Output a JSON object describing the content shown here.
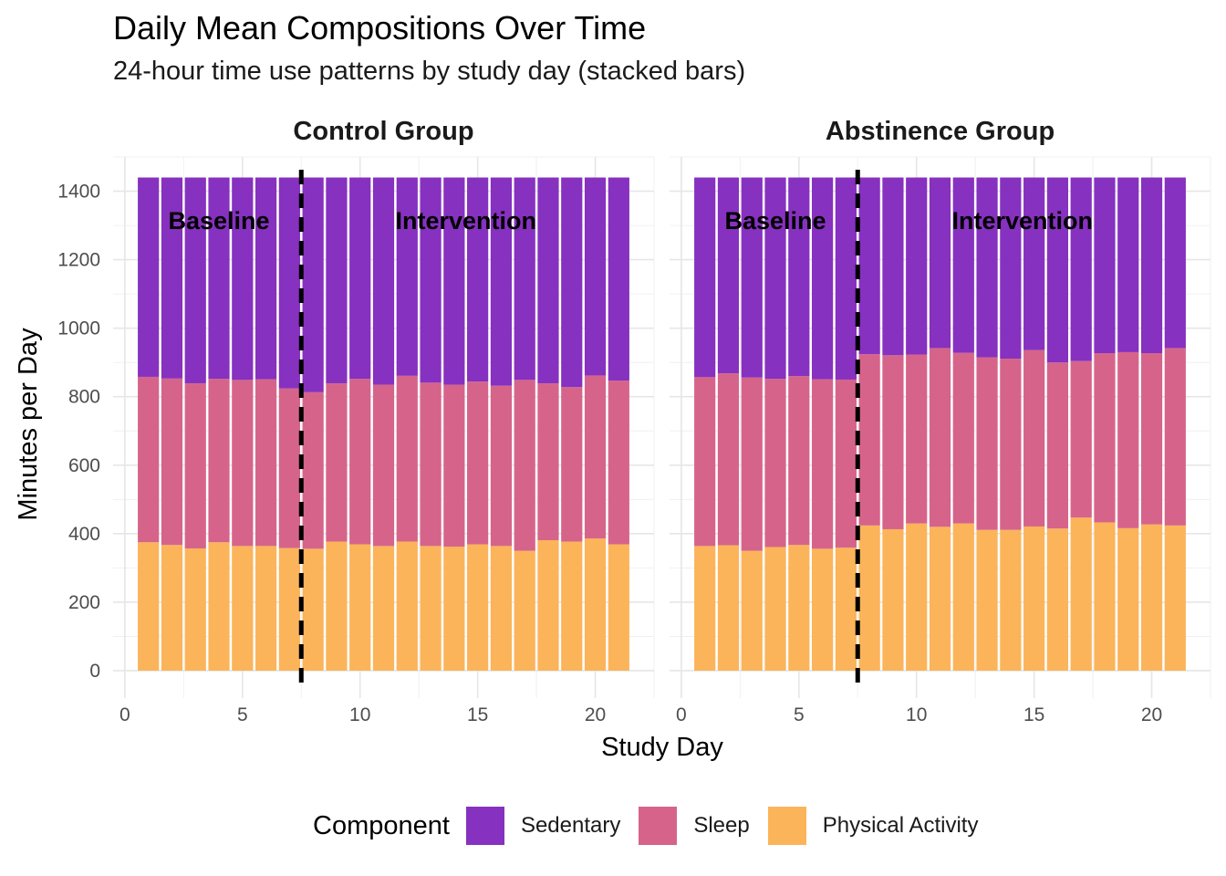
{
  "chart_data": {
    "type": "bar",
    "stacked": true,
    "title": "Daily Mean Compositions Over Time",
    "subtitle": "24-hour time use patterns by study day (stacked bars)",
    "xlabel": "Study Day",
    "ylabel": "Minutes per Day",
    "x_ticks": [
      "0",
      "5",
      "10",
      "15",
      "20"
    ],
    "y_ticks": [
      "0",
      "200",
      "400",
      "600",
      "800",
      "1000",
      "1200",
      "1400"
    ],
    "xlim": [
      -0.5,
      22.5
    ],
    "ylim": [
      -80,
      1500
    ],
    "x": [
      1,
      2,
      3,
      4,
      5,
      6,
      7,
      8,
      9,
      10,
      11,
      12,
      13,
      14,
      15,
      16,
      17,
      18,
      19,
      20,
      21
    ],
    "divider_day": 7.5,
    "phase_labels": {
      "baseline": "Baseline",
      "intervention": "Intervention"
    },
    "legend_title": "Component",
    "legend_position": "bottom",
    "series_meta": [
      {
        "name": "Sedentary",
        "color": "#8631bf"
      },
      {
        "name": "Sleep",
        "color": "#d6648a"
      },
      {
        "name": "Physical Activity",
        "color": "#fbb45a"
      }
    ],
    "panels": [
      {
        "name": "Control Group",
        "series": [
          {
            "name": "Physical Activity",
            "values": [
              375,
              367,
              357,
              375,
              364,
              364,
              358,
              356,
              377,
              369,
              364,
              377,
              364,
              362,
              369,
              364,
              350,
              381,
              377,
              386,
              369
            ]
          },
          {
            "name": "Sleep",
            "values": [
              483,
              486,
              482,
              477,
              485,
              487,
              466,
              457,
              462,
              483,
              471,
              484,
              477,
              473,
              475,
              468,
              499,
              458,
              451,
              476,
              478
            ]
          },
          {
            "name": "Sedentary",
            "values": [
              582,
              587,
              601,
              588,
              591,
              589,
              616,
              627,
              601,
              588,
              605,
              579,
              599,
              605,
              596,
              608,
              591,
              601,
              612,
              578,
              593
            ]
          }
        ]
      },
      {
        "name": "Abstinence Group",
        "series": [
          {
            "name": "Physical Activity",
            "values": [
              364,
              366,
              350,
              361,
              367,
              356,
              359,
              424,
              413,
              430,
              420,
              430,
              411,
              411,
              421,
              415,
              447,
              433,
              416,
              427,
              424
            ]
          },
          {
            "name": "Sleep",
            "values": [
              493,
              502,
              506,
              491,
              493,
              495,
              491,
              500,
              508,
              493,
              522,
              498,
              504,
              500,
              515,
              485,
              457,
              494,
              514,
              500,
              518
            ]
          },
          {
            "name": "Sedentary",
            "values": [
              583,
              572,
              584,
              588,
              580,
              589,
              590,
              516,
              519,
              517,
              498,
              512,
              525,
              529,
              504,
              540,
              536,
              513,
              510,
              513,
              498
            ]
          }
        ]
      }
    ]
  }
}
